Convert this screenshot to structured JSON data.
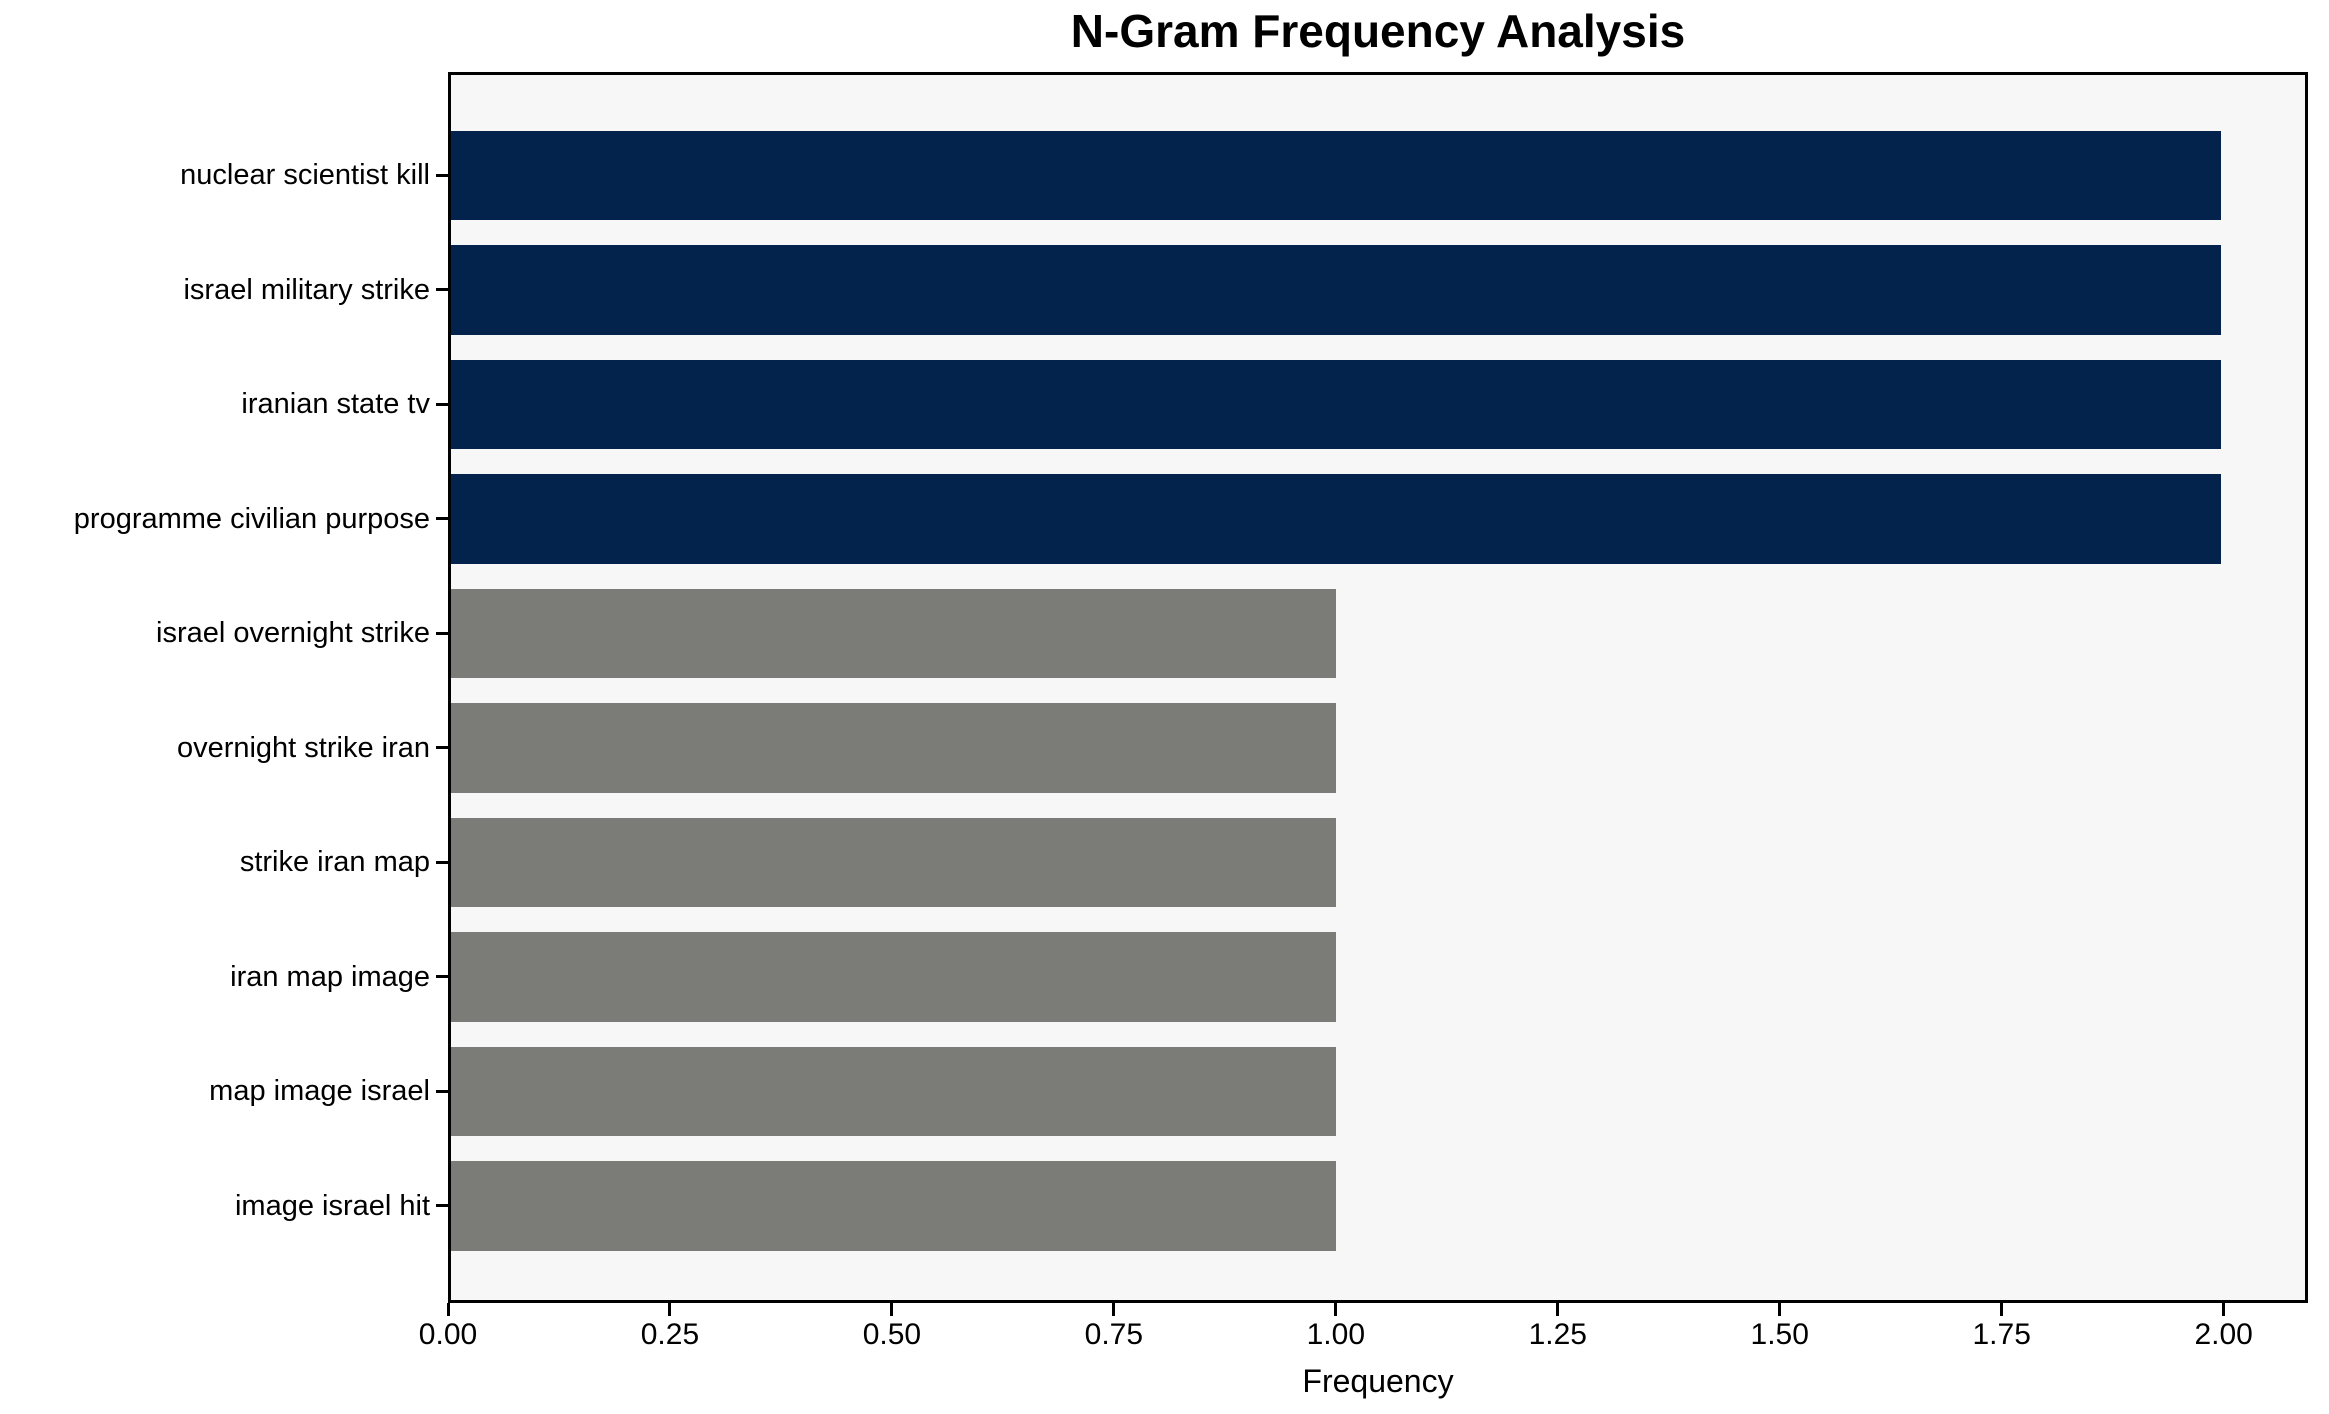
{
  "chart_data": {
    "type": "bar",
    "orientation": "horizontal",
    "title": "N-Gram Frequency Analysis",
    "xlabel": "Frequency",
    "ylabel": "",
    "categories": [
      "nuclear scientist kill",
      "israel military strike",
      "iranian state tv",
      "programme civilian purpose",
      "israel overnight strike",
      "overnight strike iran",
      "strike iran map",
      "iran map image",
      "map image israel",
      "image israel hit"
    ],
    "values": [
      2,
      2,
      2,
      2,
      1,
      1,
      1,
      1,
      1,
      1
    ],
    "bar_colors": [
      "#03234d",
      "#03234d",
      "#03234d",
      "#03234d",
      "#7b7b78",
      "#7b7b78",
      "#7b7b78",
      "#7b7b78",
      "#7b7b78",
      "#7b7b78"
    ],
    "xlim": [
      0,
      2.095
    ],
    "xticks": [
      0.0,
      0.25,
      0.5,
      0.75,
      1.0,
      1.25,
      1.5,
      1.75,
      2.0
    ],
    "xtick_labels": [
      "0.00",
      "0.25",
      "0.50",
      "0.75",
      "1.00",
      "1.25",
      "1.50",
      "1.75",
      "2.00"
    ],
    "grid": false,
    "legend": null,
    "colors": {
      "high_freq_bar": "#03234d",
      "low_freq_bar": "#7b7b78",
      "plot_background": "#f7f7f8",
      "figure_background": "#ffffff",
      "spine": "#000000",
      "text": "#000000"
    }
  }
}
